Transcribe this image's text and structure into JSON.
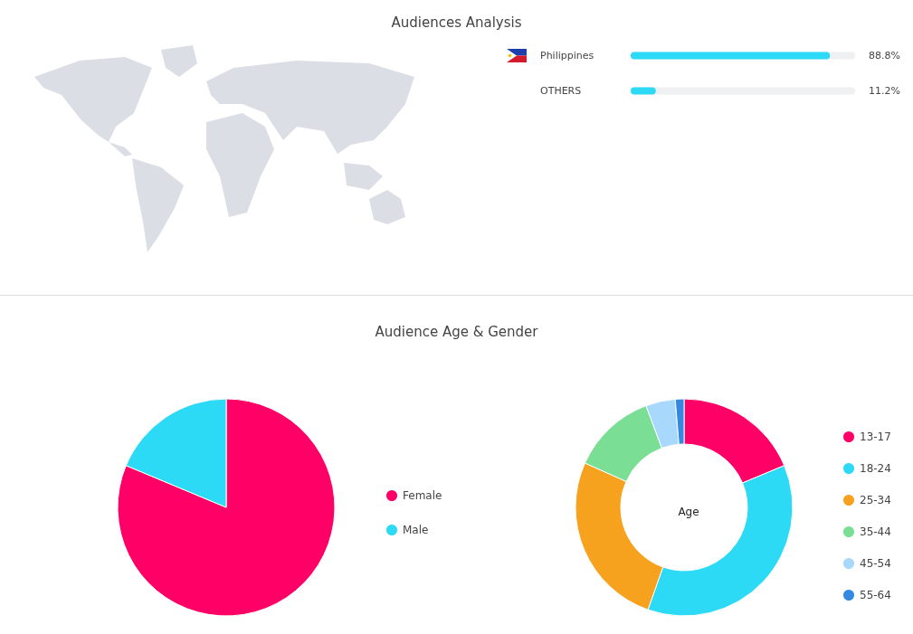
{
  "chart_data": [
    {
      "type": "bar",
      "orientation": "horizontal",
      "title": "Audiences Analysis",
      "categories": [
        "Philippines",
        "OTHERS"
      ],
      "values": [
        88.8,
        11.2
      ],
      "value_labels": [
        "88.8%",
        "11.2%"
      ],
      "color": "#2cdaf5",
      "xlim": [
        0,
        100
      ],
      "tick_labels": "y"
    },
    {
      "type": "pie",
      "title": "Audience Age & Gender",
      "categories": [
        "Female",
        "Male"
      ],
      "values": [
        81.3,
        18.7
      ],
      "colors": [
        "#ff0066",
        "#2cdaf5"
      ],
      "legend": "right"
    },
    {
      "type": "donut",
      "title": "Age",
      "categories": [
        "13-17",
        "18-24",
        "25-34",
        "35-44",
        "45-54",
        "55-64"
      ],
      "values": [
        18.7,
        36.7,
        26.3,
        12.6,
        4.4,
        1.3
      ],
      "colors": [
        "#ff0066",
        "#2cdaf5",
        "#f7a21f",
        "#7ade94",
        "#a8d8fb",
        "#3488e0"
      ],
      "legend": "right"
    }
  ]
}
